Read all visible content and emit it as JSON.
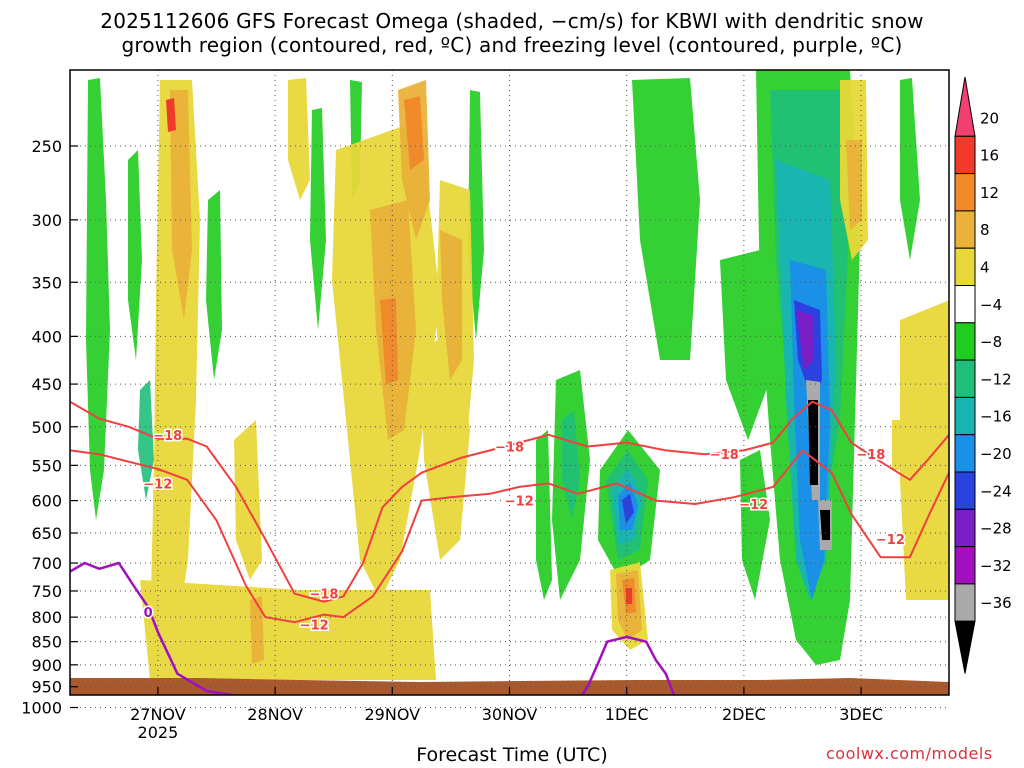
{
  "chart_data": {
    "type": "heatmap",
    "title_line1": "2025112606 GFS Forecast Omega (shaded, −cm/s) for KBWI with dendritic snow",
    "title_line2": "growth region (contoured, red, ºC) and freezing level (contoured, purple, ºC)",
    "xlabel": "Forecast Time (UTC)",
    "credit": "coolwx.com/models",
    "x_ticks": [
      {
        "label": "27NOV",
        "sublabel": "2025",
        "hour": 18
      },
      {
        "label": "28NOV",
        "hour": 42
      },
      {
        "label": "29NOV",
        "hour": 66
      },
      {
        "label": "30NOV",
        "hour": 90
      },
      {
        "label": "1DEC",
        "hour": 114
      },
      {
        "label": "2DEC",
        "hour": 138
      },
      {
        "label": "3DEC",
        "hour": 162
      }
    ],
    "xlim_hours": [
      0,
      180
    ],
    "y_ticks": [
      250,
      300,
      350,
      400,
      450,
      500,
      550,
      600,
      650,
      700,
      750,
      800,
      850,
      900,
      950,
      1000
    ],
    "ylim_hPa": [
      1025,
      200
    ],
    "grid": true,
    "colorbar": {
      "labels": [
        "20",
        "16",
        "12",
        "8",
        "4",
        "−4",
        "−8",
        "−12",
        "−16",
        "−20",
        "−24",
        "−28",
        "−32",
        "−36"
      ],
      "colors": [
        "#f24070",
        "#f23a2a",
        "#f08a2a",
        "#eab23a",
        "#e8d83a",
        "#ffffff",
        "#1fcc1f",
        "#1fbf7a",
        "#18b4b4",
        "#1a90e6",
        "#2a42e0",
        "#7a1ec8",
        "#a30fc0",
        "#aaaaaa",
        "#000000"
      ]
    },
    "dgz_contours": [
      {
        "label": "−18",
        "color": "#f04040",
        "points": [
          [
            0,
            470
          ],
          [
            6,
            490
          ],
          [
            12,
            500
          ],
          [
            18,
            515
          ],
          [
            24,
            515
          ],
          [
            28,
            525
          ],
          [
            34,
            580
          ],
          [
            40,
            660
          ],
          [
            46,
            755
          ],
          [
            52,
            770
          ],
          [
            56,
            760
          ],
          [
            60,
            700
          ],
          [
            64,
            610
          ],
          [
            68,
            580
          ],
          [
            72,
            560
          ],
          [
            80,
            540
          ],
          [
            86,
            530
          ],
          [
            92,
            520
          ],
          [
            98,
            510
          ],
          [
            106,
            525
          ],
          [
            114,
            520
          ],
          [
            122,
            530
          ],
          [
            130,
            535
          ],
          [
            138,
            530
          ],
          [
            144,
            520
          ],
          [
            148,
            490
          ],
          [
            152,
            470
          ],
          [
            156,
            480
          ],
          [
            160,
            520
          ],
          [
            166,
            545
          ],
          [
            172,
            570
          ],
          [
            176,
            540
          ],
          [
            180,
            510
          ]
        ],
        "label_at": [
          [
            20,
            510
          ],
          [
            52,
            755
          ],
          [
            90,
            525
          ],
          [
            134,
            535
          ],
          [
            164,
            535
          ]
        ]
      },
      {
        "label": "−12",
        "color": "#f04040",
        "points": [
          [
            0,
            530
          ],
          [
            6,
            535
          ],
          [
            12,
            545
          ],
          [
            18,
            555
          ],
          [
            24,
            570
          ],
          [
            30,
            630
          ],
          [
            36,
            740
          ],
          [
            40,
            800
          ],
          [
            46,
            810
          ],
          [
            52,
            795
          ],
          [
            56,
            800
          ],
          [
            62,
            760
          ],
          [
            68,
            680
          ],
          [
            72,
            600
          ],
          [
            78,
            595
          ],
          [
            86,
            590
          ],
          [
            92,
            580
          ],
          [
            98,
            575
          ],
          [
            104,
            590
          ],
          [
            112,
            575
          ],
          [
            120,
            600
          ],
          [
            128,
            605
          ],
          [
            136,
            595
          ],
          [
            144,
            580
          ],
          [
            150,
            530
          ],
          [
            156,
            560
          ],
          [
            160,
            620
          ],
          [
            166,
            690
          ],
          [
            172,
            690
          ],
          [
            176,
            620
          ],
          [
            180,
            560
          ]
        ],
        "label_at": [
          [
            18,
            575
          ],
          [
            50,
            815
          ],
          [
            92,
            600
          ],
          [
            140,
            605
          ],
          [
            168,
            660
          ]
        ]
      }
    ],
    "freezing_contour": {
      "label": "0",
      "color": "#a010c0",
      "points": [
        [
          0,
          715
        ],
        [
          3,
          700
        ],
        [
          6,
          710
        ],
        [
          10,
          700
        ],
        [
          13,
          740
        ],
        [
          16,
          780
        ],
        [
          18,
          830
        ],
        [
          22,
          920
        ],
        [
          28,
          960
        ],
        [
          36,
          975
        ],
        [
          44,
          975
        ],
        [
          52,
          990
        ],
        [
          58,
          1000
        ],
        [
          62,
          985
        ],
        [
          66,
          970
        ],
        [
          72,
          985
        ],
        [
          78,
          1010
        ],
        [
          84,
          1000
        ],
        [
          90,
          995
        ],
        [
          96,
          1000
        ],
        [
          98,
          1010
        ],
        [
          100,
          1000
        ],
        [
          104,
          985
        ],
        [
          106,
          950
        ],
        [
          108,
          900
        ],
        [
          110,
          850
        ],
        [
          114,
          840
        ],
        [
          118,
          850
        ],
        [
          120,
          890
        ],
        [
          122,
          920
        ],
        [
          124,
          980
        ],
        [
          126,
          1010
        ],
        [
          130,
          1005
        ],
        [
          136,
          985
        ],
        [
          142,
          990
        ],
        [
          146,
          1005
        ],
        [
          152,
          1008
        ],
        [
          158,
          1002
        ],
        [
          162,
          1010
        ]
      ],
      "label_at": [
        [
          16,
          790
        ]
      ]
    }
  }
}
